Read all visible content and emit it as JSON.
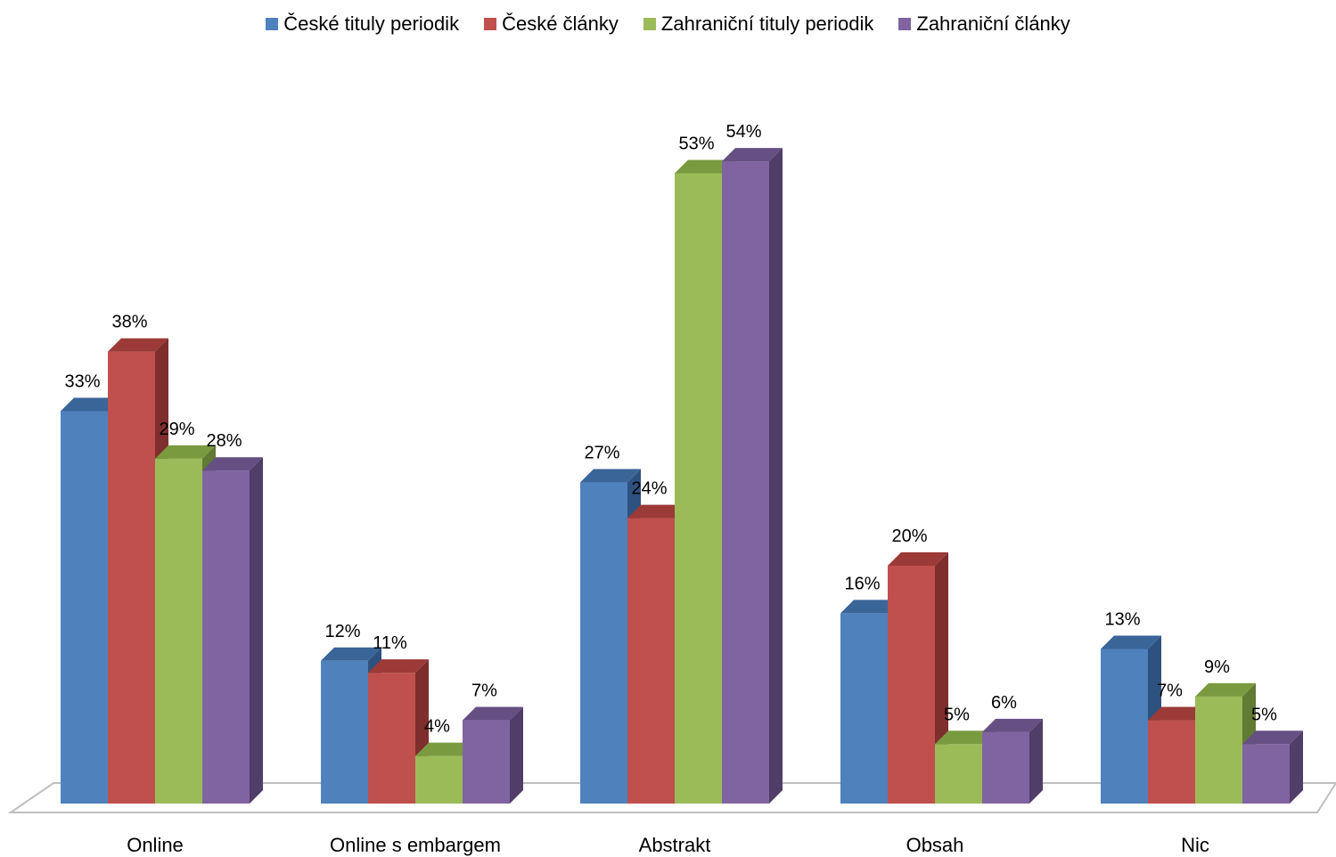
{
  "chart_data": {
    "type": "bar",
    "style": "3d-clustered-column",
    "categories": [
      "Online",
      "Online s embargem",
      "Abstrakt",
      "Obsah",
      "Nic"
    ],
    "series": [
      {
        "name": "České tituly periodik",
        "values": [
          33,
          12,
          27,
          16,
          13
        ],
        "color": "#4F81BD",
        "side_color": "#2E527F",
        "top_color": "#3A6599"
      },
      {
        "name": "České články",
        "values": [
          38,
          11,
          24,
          20,
          7
        ],
        "color": "#C0504D",
        "side_color": "#7E2E2C",
        "top_color": "#9B3A37"
      },
      {
        "name": "Zahraniční tituly periodik",
        "values": [
          29,
          4,
          53,
          5,
          9
        ],
        "color": "#9BBB59",
        "side_color": "#617A34",
        "top_color": "#7A9A40"
      },
      {
        "name": "Zahraniční články",
        "values": [
          28,
          7,
          54,
          6,
          5
        ],
        "color": "#8064A2",
        "side_color": "#503D68",
        "top_color": "#654F83"
      }
    ],
    "value_suffix": "%",
    "ylim": [
      0,
      60
    ],
    "grid": false,
    "legend_position": "top",
    "title": "",
    "xlabel": "",
    "ylabel": ""
  }
}
